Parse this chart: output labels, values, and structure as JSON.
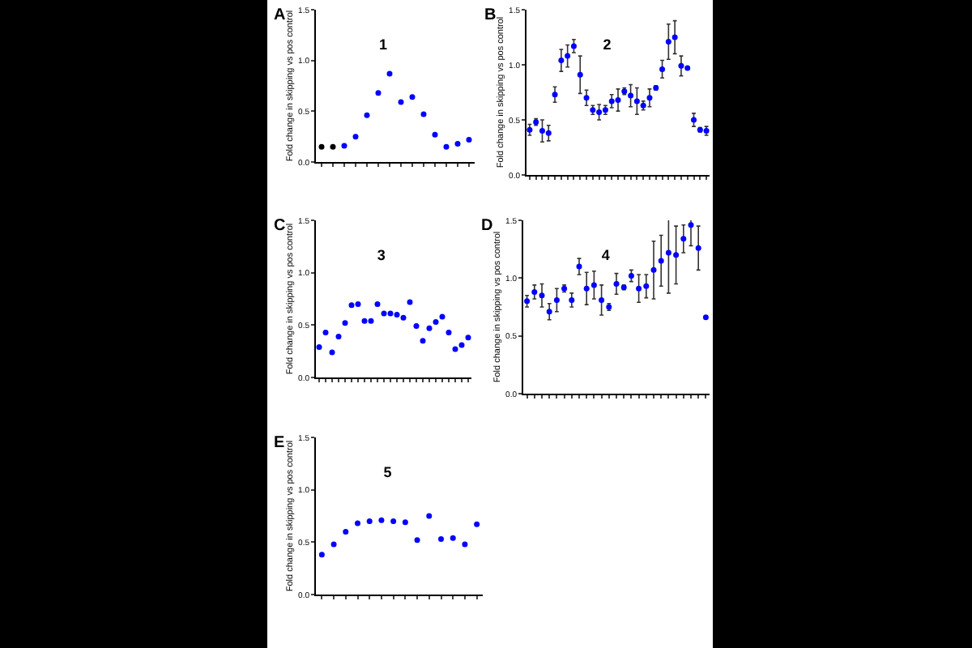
{
  "chart_data": [
    {
      "type": "scatter",
      "title": "1",
      "annotations": [
        "A"
      ],
      "ylabel": "Fold change in skipping vs pos control",
      "categories": [
        null,
        null,
        null,
        null,
        null,
        null,
        null,
        null,
        null,
        null,
        null,
        null,
        null,
        null
      ],
      "values": [
        0.15,
        0.15,
        0.16,
        0.25,
        0.46,
        0.68,
        0.87,
        0.59,
        0.64,
        0.47,
        0.27,
        0.15,
        0.18,
        0.22
      ],
      "colors": [
        "#000000",
        "#000000",
        "#0000ff",
        "#0000ff",
        "#0000ff",
        "#0000ff",
        "#0000ff",
        "#0000ff",
        "#0000ff",
        "#0000ff",
        "#0000ff",
        "#0000ff",
        "#0000ff",
        "#0000ff"
      ],
      "ylim": [
        0,
        1.5
      ],
      "yticks": [
        {
          "value": 0,
          "label": "0.0"
        },
        {
          "value": 0.5,
          "label": "0.5"
        },
        {
          "value": 1,
          "label": "1.0"
        },
        {
          "value": 1.5,
          "label": "1.5"
        }
      ],
      "tick_labels": "y",
      "marker": "circle"
    },
    {
      "type": "scatter",
      "title": "2",
      "annotations": [
        "B"
      ],
      "ylabel": "Fold change in skipping vs pos control",
      "categories": [
        null,
        null,
        null,
        null,
        null,
        null,
        null,
        null,
        null,
        null,
        null,
        null,
        null,
        null,
        null,
        null,
        null,
        null,
        null,
        null,
        null,
        null,
        null,
        null,
        null,
        null,
        null,
        null,
        null
      ],
      "values": [
        0.41,
        0.48,
        0.4,
        0.38,
        0.73,
        1.04,
        1.08,
        1.17,
        0.91,
        0.7,
        0.59,
        0.57,
        0.59,
        0.67,
        0.68,
        0.76,
        0.72,
        0.67,
        0.63,
        0.7,
        0.79,
        0.96,
        1.21,
        1.25,
        0.99,
        0.97,
        0.5,
        0.41,
        0.4
      ],
      "errors": [
        0.05,
        0.03,
        0.1,
        0.07,
        0.07,
        0.1,
        0.1,
        0.06,
        0.17,
        0.07,
        0.04,
        0.07,
        0.04,
        0.06,
        0.1,
        0.03,
        0.1,
        0.12,
        0.04,
        0.08,
        0.02,
        0.08,
        0.16,
        0.15,
        0.09,
        0.01,
        0.06,
        0.02,
        0.04
      ],
      "color": "#0000ff",
      "ylim": [
        0,
        1.5
      ],
      "yticks": [
        {
          "value": 0,
          "label": "0.0"
        },
        {
          "value": 0.5,
          "label": "0.5"
        },
        {
          "value": 1,
          "label": "1.0"
        },
        {
          "value": 1.5,
          "label": "1.5"
        }
      ],
      "tick_labels": "y",
      "marker": "circle"
    },
    {
      "type": "scatter",
      "title": "3",
      "annotations": [
        "C"
      ],
      "ylabel": "Fold change in skipping vs pos control",
      "categories": [
        null,
        null,
        null,
        null,
        null,
        null,
        null,
        null,
        null,
        null,
        null,
        null,
        null,
        null,
        null,
        null,
        null,
        null,
        null,
        null,
        null,
        null,
        null,
        null
      ],
      "values": [
        0.29,
        0.43,
        0.24,
        0.39,
        0.52,
        0.69,
        0.7,
        0.54,
        0.54,
        0.7,
        0.61,
        0.61,
        0.6,
        0.57,
        0.72,
        0.49,
        0.35,
        0.47,
        0.53,
        0.58,
        0.43,
        0.27,
        0.31,
        0.38
      ],
      "color": "#0000ff",
      "ylim": [
        0,
        1.5
      ],
      "yticks": [
        {
          "value": 0,
          "label": "0.0"
        },
        {
          "value": 0.5,
          "label": "0.5"
        },
        {
          "value": 1,
          "label": "1.0"
        },
        {
          "value": 1.5,
          "label": "1.5"
        }
      ],
      "tick_labels": "y",
      "marker": "circle"
    },
    {
      "type": "scatter",
      "title": "4",
      "annotations": [
        "D"
      ],
      "ylabel": "Fold change in skipping vs pos control",
      "categories": [
        null,
        null,
        null,
        null,
        null,
        null,
        null,
        null,
        null,
        null,
        null,
        null,
        null,
        null,
        null,
        null,
        null,
        null,
        null,
        null,
        null,
        null,
        null,
        null,
        null
      ],
      "values": [
        0.8,
        0.88,
        0.85,
        0.71,
        0.81,
        0.91,
        0.81,
        1.1,
        0.91,
        0.94,
        0.81,
        0.75,
        0.95,
        0.92,
        1.02,
        0.91,
        0.93,
        1.07,
        1.15,
        1.22,
        1.2,
        1.34,
        1.46,
        1.26,
        0.66
      ],
      "errors": [
        0.05,
        0.06,
        0.1,
        0.07,
        0.1,
        0.03,
        0.06,
        0.07,
        0.14,
        0.12,
        0.13,
        0.03,
        0.09,
        0.02,
        0.05,
        0.12,
        0.1,
        0.25,
        0.22,
        0.35,
        0.25,
        0.12,
        0.18,
        0.19,
        null
      ],
      "color": "#0000ff",
      "ylim": [
        0,
        1.5
      ],
      "yticks": [
        {
          "value": 0,
          "label": "0.0"
        },
        {
          "value": 0.5,
          "label": "0.5"
        },
        {
          "value": 1,
          "label": "1.0"
        },
        {
          "value": 1.5,
          "label": "1.5"
        }
      ],
      "tick_labels": "y",
      "marker": "circle"
    },
    {
      "type": "scatter",
      "title": "5",
      "annotations": [
        "E"
      ],
      "ylabel": "Fold change in skipping vs pos control",
      "categories": [
        null,
        null,
        null,
        null,
        null,
        null,
        null,
        null,
        null,
        null,
        null,
        null,
        null,
        null
      ],
      "values": [
        0.38,
        0.48,
        0.6,
        0.68,
        0.7,
        0.71,
        0.7,
        0.69,
        0.52,
        0.75,
        0.53,
        0.54,
        0.48,
        0.67
      ],
      "color": "#0000ff",
      "ylim": [
        0,
        1.5
      ],
      "yticks": [
        {
          "value": 0,
          "label": "0.0"
        },
        {
          "value": 0.5,
          "label": "0.5"
        },
        {
          "value": 1,
          "label": "1.0"
        },
        {
          "value": 1.5,
          "label": "1.5"
        }
      ],
      "tick_labels": "y",
      "marker": "circle"
    }
  ]
}
